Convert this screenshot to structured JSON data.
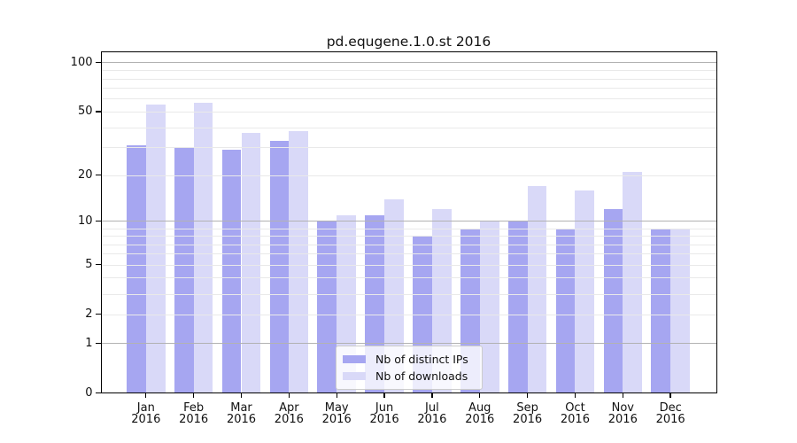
{
  "figure": {
    "title": "pd.equgene.1.0.st 2016"
  },
  "legend": {
    "items": [
      {
        "label": "Nb of distinct IPs",
        "color": "#a6a6f1"
      },
      {
        "label": "Nb of downloads",
        "color": "#d9d9f8"
      }
    ]
  },
  "chart_data": {
    "type": "bar",
    "title": "pd.equgene.1.0.st 2016",
    "categories": [
      "Jan",
      "Feb",
      "Mar",
      "Apr",
      "May",
      "Jun",
      "Jul",
      "Aug",
      "Sep",
      "Oct",
      "Nov",
      "Dec"
    ],
    "x_year": "2016",
    "series": [
      {
        "name": "Nb of distinct IPs",
        "color": "#a6a6f1",
        "values": [
          31,
          30,
          29,
          33,
          10,
          11,
          8,
          9,
          10,
          9,
          12,
          9
        ]
      },
      {
        "name": "Nb of downloads",
        "color": "#d9d9f8",
        "values": [
          55,
          57,
          37,
          38,
          11,
          14,
          12,
          10,
          17,
          16,
          21,
          9
        ]
      }
    ],
    "xlabel": "",
    "ylabel": "",
    "yscale": "log1p",
    "ylim": [
      0,
      117
    ],
    "yticks": [
      0,
      1,
      2,
      5,
      10,
      20,
      50,
      100
    ],
    "y_major_gridlines": [
      1,
      10,
      100
    ],
    "y_minor_gridlines": [
      2,
      3,
      4,
      5,
      6,
      7,
      8,
      9,
      20,
      30,
      40,
      50,
      60,
      70,
      80,
      90
    ],
    "grid": true,
    "legend_position": "lower center",
    "colors": {
      "grid_major": "#b2b2b2",
      "grid_minor": "#e9e9e9",
      "axis": "#000000",
      "background": "#ffffff"
    }
  }
}
